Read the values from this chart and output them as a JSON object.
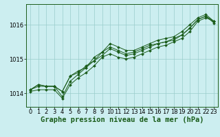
{
  "title": "Graphe pression niveau de la mer (hPa)",
  "bg_color": "#cceef0",
  "line_color": "#1a5c1a",
  "grid_color": "#99cccc",
  "ylim": [
    1013.6,
    1016.6
  ],
  "xlim": [
    -0.5,
    23.5
  ],
  "yticks": [
    1014,
    1015,
    1016
  ],
  "xticks": [
    0,
    1,
    2,
    3,
    4,
    5,
    6,
    7,
    8,
    9,
    10,
    11,
    12,
    13,
    14,
    15,
    16,
    17,
    18,
    19,
    20,
    21,
    22,
    23
  ],
  "series": [
    [
      1014.05,
      1014.1,
      1014.1,
      1014.1,
      1013.85,
      1014.25,
      1014.45,
      1014.6,
      1014.8,
      1015.05,
      1015.15,
      1015.05,
      1015.0,
      1015.05,
      1015.15,
      1015.25,
      1015.35,
      1015.4,
      1015.5,
      1015.6,
      1015.8,
      1016.1,
      1016.2,
      1016.1
    ],
    [
      1014.1,
      1014.2,
      1014.2,
      1014.2,
      1014.05,
      1014.5,
      1014.65,
      1014.75,
      1014.95,
      1015.2,
      1015.35,
      1015.25,
      1015.15,
      1015.2,
      1015.3,
      1015.4,
      1015.45,
      1015.5,
      1015.6,
      1015.7,
      1015.9,
      1016.15,
      1016.25,
      1016.1
    ],
    [
      1014.1,
      1014.25,
      1014.2,
      1014.2,
      1013.9,
      1014.35,
      1014.55,
      1014.75,
      1015.05,
      1015.2,
      1015.45,
      1015.35,
      1015.25,
      1015.25,
      1015.35,
      1015.45,
      1015.55,
      1015.6,
      1015.65,
      1015.8,
      1016.0,
      1016.2,
      1016.3,
      1016.1
    ],
    [
      1014.1,
      1014.25,
      1014.2,
      1014.2,
      1014.05,
      1014.5,
      1014.6,
      1014.8,
      1014.95,
      1015.1,
      1015.3,
      1015.2,
      1015.1,
      1015.15,
      1015.25,
      1015.35,
      1015.45,
      1015.5,
      1015.55,
      1015.7,
      1015.9,
      1016.15,
      1016.25,
      1016.05
    ]
  ],
  "title_fontsize": 7.5,
  "tick_fontsize": 6,
  "marker": "D",
  "markersize": 2,
  "linewidth": 0.7
}
